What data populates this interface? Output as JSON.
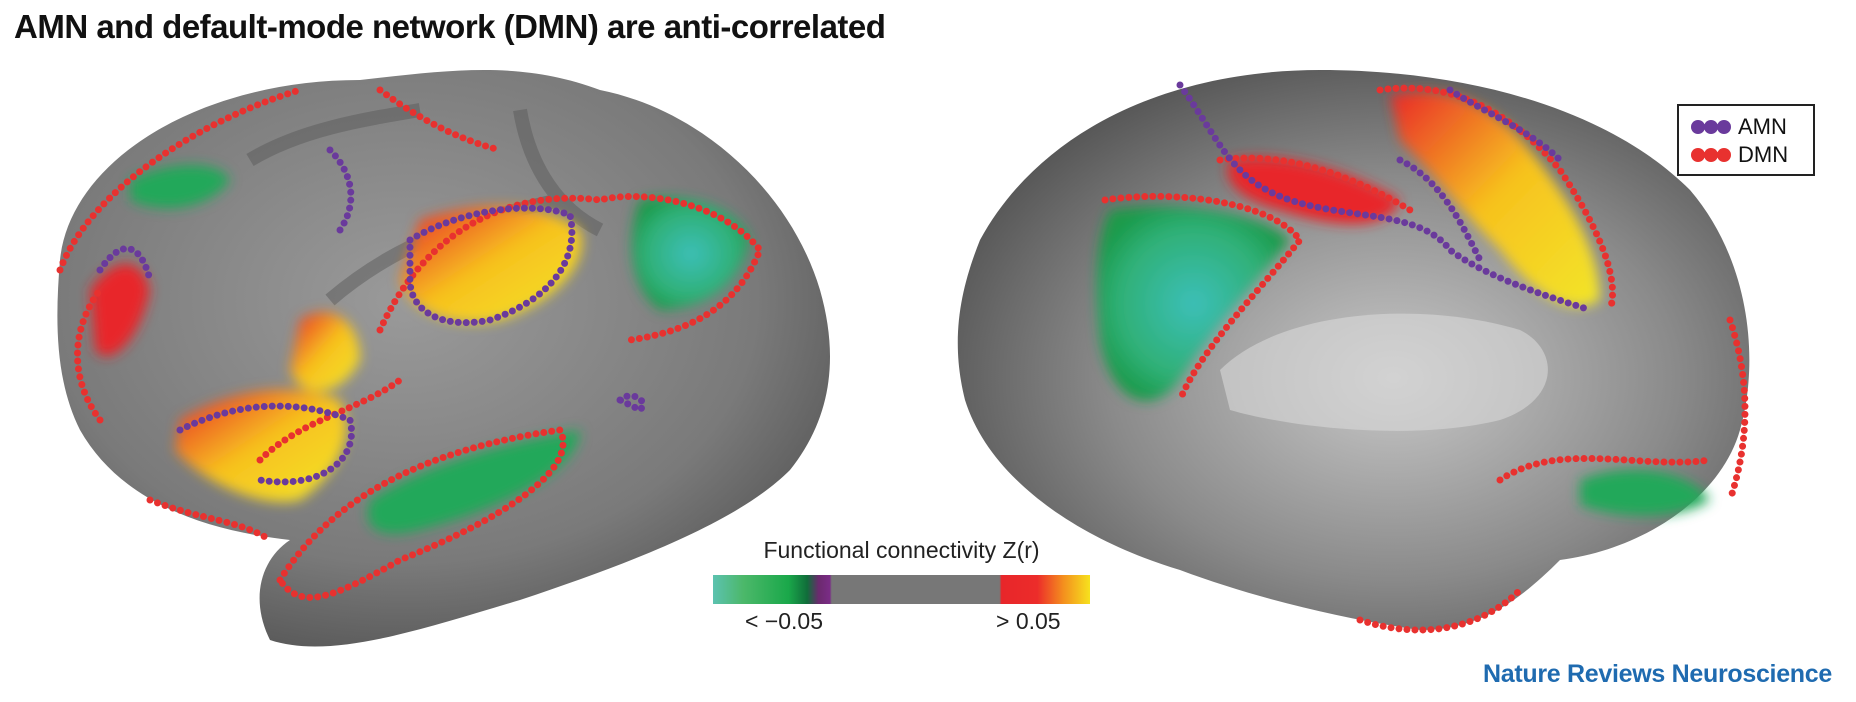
{
  "title": "AMN and default-mode network (DMN) are anti-correlated",
  "colorbar": {
    "title": "Functional connectivity Z(r)",
    "low_label": "< −0.05",
    "high_label": "> 0.05",
    "colors": [
      "#5cc2b0",
      "#1aa84a",
      "#7a2c86",
      "#777777",
      "#e8262a",
      "#f6e21e"
    ]
  },
  "legend": {
    "items": [
      {
        "label": "AMN",
        "color": "#6a3a9c"
      },
      {
        "label": "DMN",
        "color": "#e8312f"
      }
    ]
  },
  "views": [
    "lateral-left-hemisphere",
    "medial-hemisphere"
  ],
  "brand": "Nature Reviews Neuroscience"
}
